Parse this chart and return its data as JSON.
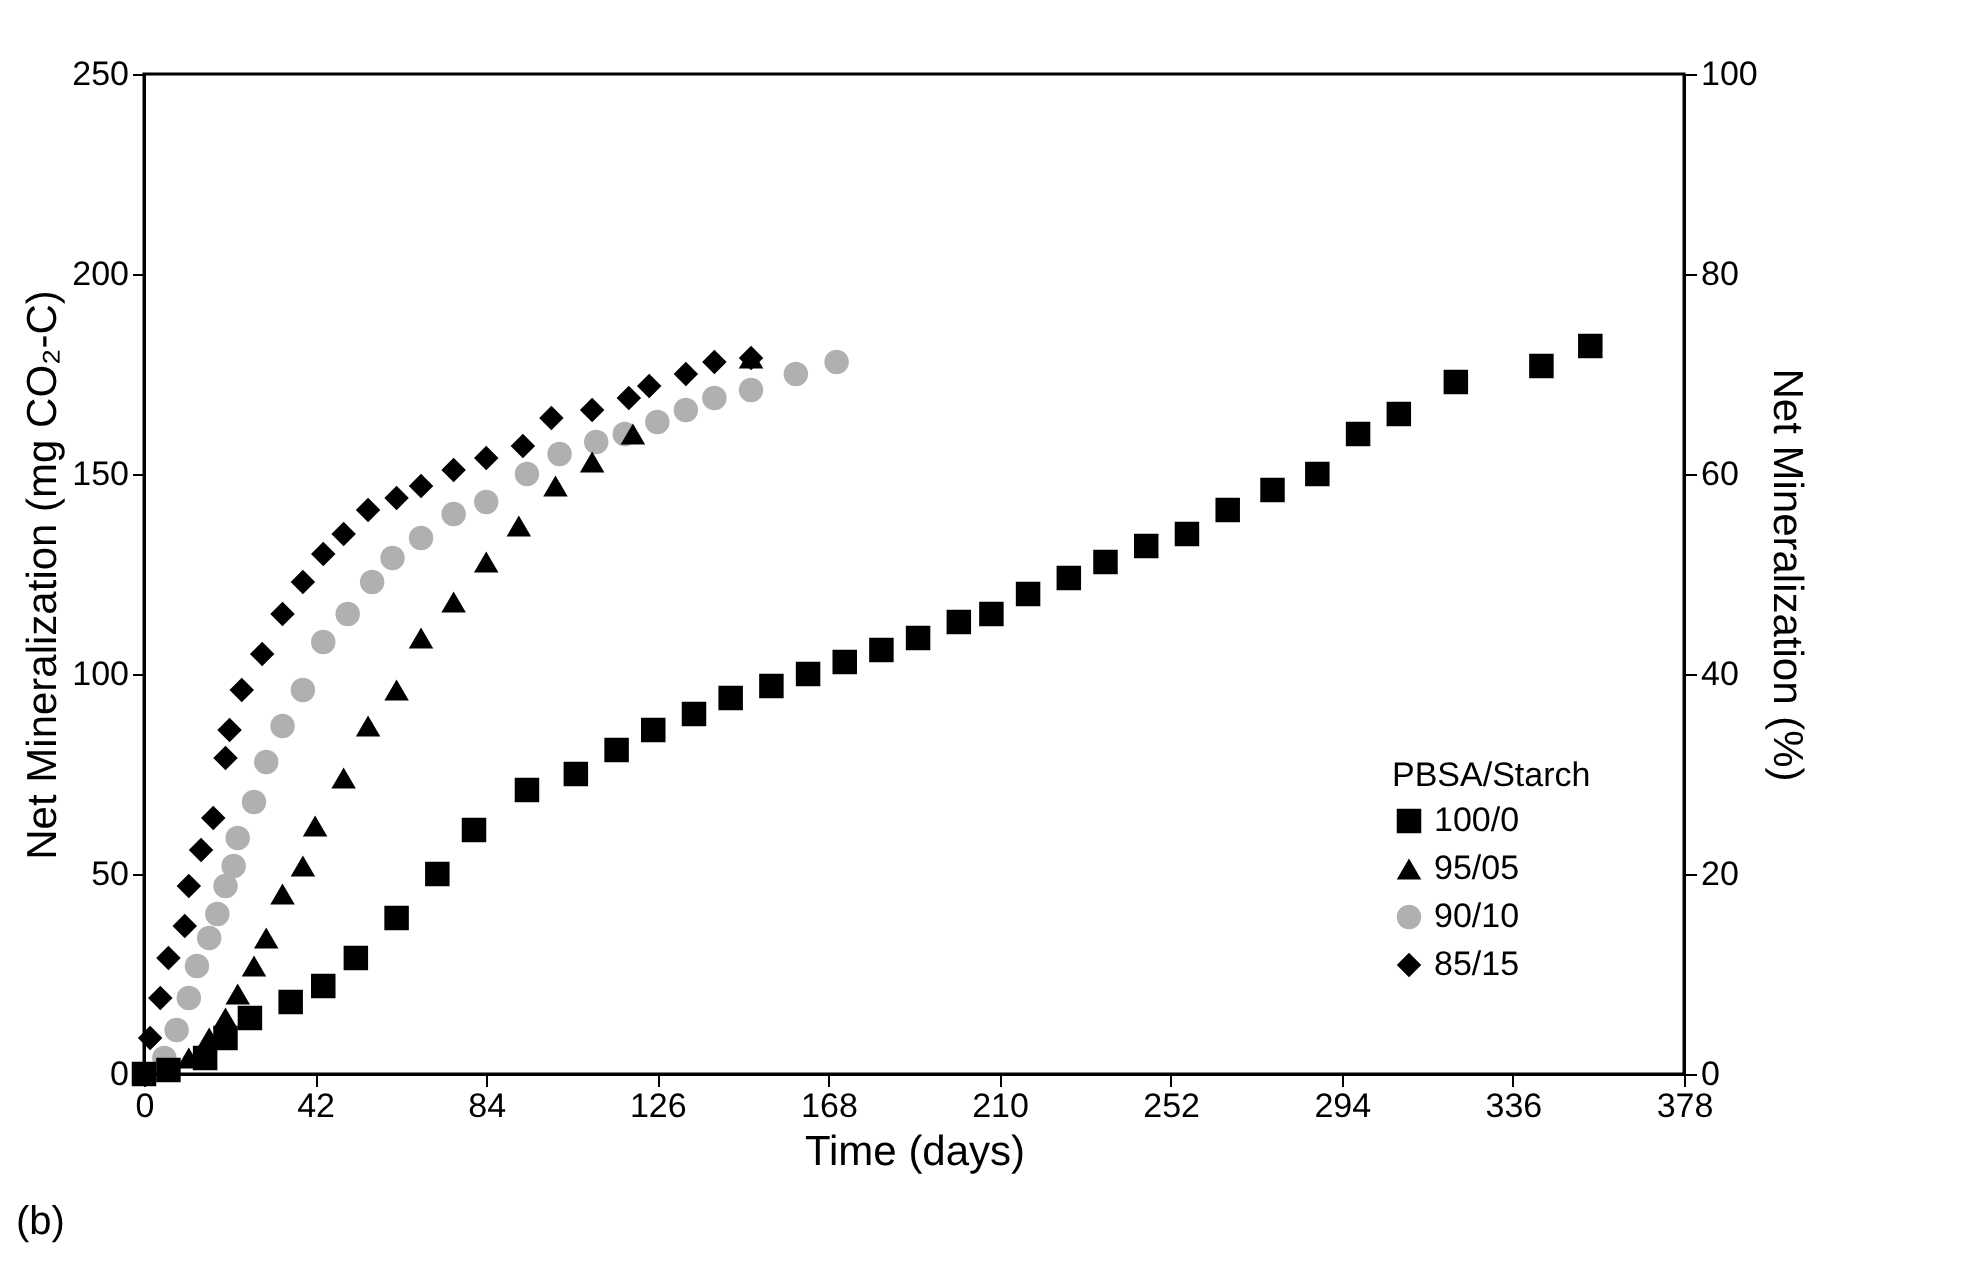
{
  "chart_data": {
    "type": "scatter",
    "xlabel": "Time (days)",
    "ylabel": "Net Mineralization (mg CO₂-C)",
    "y2label": "Net Mineralization (%)",
    "legend_title": "PBSA/Starch",
    "legend": "bottom right",
    "annotations": [
      "(b)"
    ],
    "xlim": [
      0,
      378
    ],
    "xticks": [
      0,
      42,
      84,
      126,
      168,
      210,
      252,
      294,
      336,
      378
    ],
    "ylim": [
      0,
      250
    ],
    "yticks": [
      0,
      50,
      100,
      150,
      200,
      250
    ],
    "y2lim": [
      0,
      100
    ],
    "y2ticks": [
      0,
      20,
      40,
      60,
      80,
      100
    ],
    "series": [
      {
        "name": "100/0",
        "color": "#000000",
        "marker": "square",
        "x": [
          0,
          6,
          15,
          20,
          26,
          36,
          44,
          52,
          62,
          72,
          81,
          94,
          106,
          116,
          125,
          135,
          144,
          154,
          163,
          172,
          181,
          190,
          200,
          208,
          217,
          227,
          236,
          246,
          256,
          266,
          277,
          288,
          298,
          308,
          322,
          343,
          355
        ],
        "values": [
          0,
          1,
          4,
          9,
          14,
          18,
          22,
          29,
          39,
          50,
          61,
          71,
          75,
          81,
          86,
          90,
          94,
          97,
          100,
          103,
          106,
          109,
          113,
          115,
          120,
          124,
          128,
          132,
          135,
          141,
          146,
          150,
          160,
          165,
          173,
          177,
          182
        ]
      },
      {
        "name": "95/05",
        "color": "#000000",
        "marker": "triangle",
        "x": [
          11,
          16,
          20,
          23,
          27,
          30,
          34,
          39,
          42,
          49,
          55,
          62,
          68,
          76,
          84,
          92,
          101,
          110,
          120,
          149
        ],
        "values": [
          4,
          9,
          14,
          20,
          27,
          34,
          45,
          52,
          62,
          74,
          87,
          96,
          109,
          118,
          128,
          137,
          147,
          153,
          160,
          179
        ]
      },
      {
        "name": "90/10",
        "color": "#b0b0b0",
        "marker": "circle",
        "x": [
          5,
          8,
          11,
          13,
          16,
          18,
          20,
          22,
          23,
          27,
          30,
          34,
          39,
          44,
          50,
          56,
          61,
          68,
          76,
          84,
          94,
          102,
          111,
          118,
          126,
          133,
          140,
          149,
          160,
          170
        ],
        "values": [
          4,
          11,
          19,
          27,
          34,
          40,
          47,
          52,
          59,
          68,
          78,
          87,
          96,
          108,
          115,
          123,
          129,
          134,
          140,
          143,
          150,
          155,
          158,
          160,
          163,
          166,
          169,
          171,
          175,
          178
        ]
      },
      {
        "name": "85/15",
        "color": "#000000",
        "marker": "diamond",
        "x": [
          1.5,
          4,
          6,
          10,
          11,
          14,
          17,
          20,
          21,
          24,
          29,
          34,
          39,
          44,
          49,
          55,
          62,
          68,
          76,
          84,
          93,
          100,
          110,
          119,
          124,
          133,
          140,
          149
        ],
        "values": [
          9,
          19,
          29,
          37,
          47,
          56,
          64,
          79,
          86,
          96,
          105,
          115,
          123,
          130,
          135,
          141,
          144,
          147,
          151,
          154,
          157,
          164,
          166,
          169,
          172,
          175,
          178,
          179
        ]
      }
    ]
  }
}
